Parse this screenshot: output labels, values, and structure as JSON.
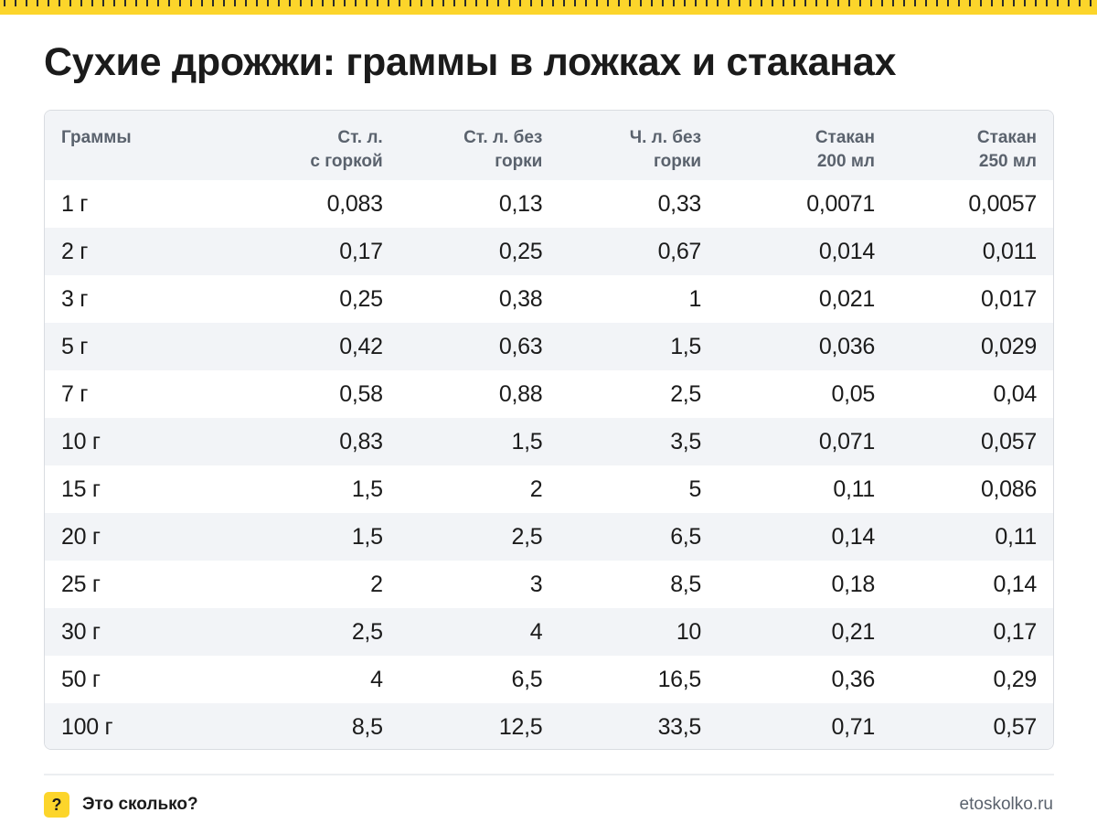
{
  "title": "Сухие дрожжи: граммы в ложках и стаканах",
  "table": {
    "headers": [
      [
        "Граммы",
        ""
      ],
      [
        "Ст. л.",
        "с горкой"
      ],
      [
        "Ст. л. без",
        "горки"
      ],
      [
        "Ч. л. без",
        "горки"
      ],
      [
        "Стакан",
        "200 мл"
      ],
      [
        "Стакан",
        "250 мл"
      ]
    ],
    "rows": [
      [
        "1 г",
        "0,083",
        "0,13",
        "0,33",
        "0,0071",
        "0,0057"
      ],
      [
        "2 г",
        "0,17",
        "0,25",
        "0,67",
        "0,014",
        "0,011"
      ],
      [
        "3 г",
        "0,25",
        "0,38",
        "1",
        "0,021",
        "0,017"
      ],
      [
        "5 г",
        "0,42",
        "0,63",
        "1,5",
        "0,036",
        "0,029"
      ],
      [
        "7 г",
        "0,58",
        "0,88",
        "2,5",
        "0,05",
        "0,04"
      ],
      [
        "10 г",
        "0,83",
        "1,5",
        "3,5",
        "0,071",
        "0,057"
      ],
      [
        "15 г",
        "1,5",
        "2",
        "5",
        "0,11",
        "0,086"
      ],
      [
        "20 г",
        "1,5",
        "2,5",
        "6,5",
        "0,14",
        "0,11"
      ],
      [
        "25 г",
        "2",
        "3",
        "8,5",
        "0,18",
        "0,14"
      ],
      [
        "30 г",
        "2,5",
        "4",
        "10",
        "0,21",
        "0,17"
      ],
      [
        "50 г",
        "4",
        "6,5",
        "16,5",
        "0,36",
        "0,29"
      ],
      [
        "100 г",
        "8,5",
        "12,5",
        "33,5",
        "0,71",
        "0,57"
      ]
    ]
  },
  "footer": {
    "badge": "?",
    "brand": "Это сколько?",
    "site": "etoskolko.ru"
  },
  "colors": {
    "accent": "#fcd52b",
    "stripe": "#f2f4f7",
    "header_text": "#5a626d"
  }
}
